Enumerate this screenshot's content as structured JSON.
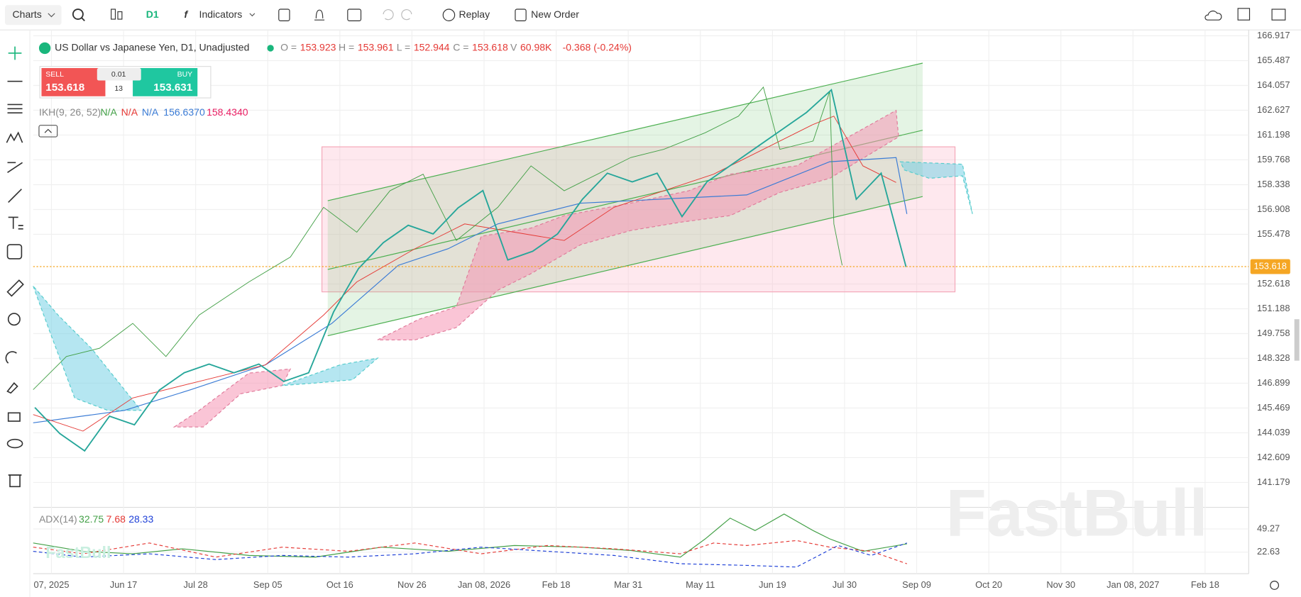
{
  "toolbar": {
    "charts": "Charts",
    "timeframe": "D1",
    "indicators": "Indicators",
    "replay": "Replay",
    "new_order": "New Order"
  },
  "legend": {
    "symbol": "US Dollar vs Japanese Yen, D1, Unadjusted",
    "ohlc": [
      {
        "k": "O =",
        "v": "153.923"
      },
      {
        "k": "H =",
        "v": "153.961"
      },
      {
        "k": "L =",
        "v": "152.944"
      },
      {
        "k": "C =",
        "v": "153.618"
      },
      {
        "k": "V",
        "v": "60.98K"
      }
    ],
    "change": "-0.368 (-0.24%)"
  },
  "trade": {
    "sell": "SELL",
    "sell_price": "153.618",
    "buy": "BUY",
    "buy_price": "153.631",
    "qty": "0.01",
    "lots": "13"
  },
  "ikh": {
    "name": "IKH(9, 26, 52)",
    "values": [
      "N/A",
      "N/A",
      "N/A",
      "156.6370",
      "158.4340"
    ]
  },
  "adx": {
    "name": "ADX(14)",
    "values": [
      "32.75",
      "7.68",
      "28.33"
    ],
    "ticks": [
      49.27,
      22.63
    ]
  },
  "chart": {
    "type": "line",
    "price_ticks": [
      166.917,
      165.487,
      164.057,
      162.627,
      161.198,
      159.768,
      158.338,
      156.908,
      155.478,
      152.618,
      151.188,
      149.758,
      148.328,
      146.899,
      145.469,
      144.039,
      142.609,
      141.179
    ],
    "current_price": 153.618,
    "dates": [
      "07, 2025",
      "Jun 17",
      "Jul 28",
      "Sep 05",
      "Oct 16",
      "Nov 26",
      "Jan 08, 2026",
      "Feb 18",
      "Mar 31",
      "May 11",
      "Jun 19",
      "Jul 30",
      "Sep 09",
      "Oct 20",
      "Nov 30",
      "Jan 08, 2027",
      "Feb 18"
    ],
    "closes": [
      145.5,
      144,
      143,
      145,
      144.5,
      146.5,
      147.5,
      148,
      147.5,
      148,
      147,
      147.5,
      151,
      153.5,
      155,
      156,
      155.5,
      157,
      158,
      154,
      154.5,
      155.5,
      157.5,
      159,
      158.5,
      159,
      156.5,
      158.5,
      159.5,
      160.5,
      161.5,
      162.5,
      163.8,
      157.5,
      159,
      153.6
    ]
  },
  "watermark": "FastBull"
}
